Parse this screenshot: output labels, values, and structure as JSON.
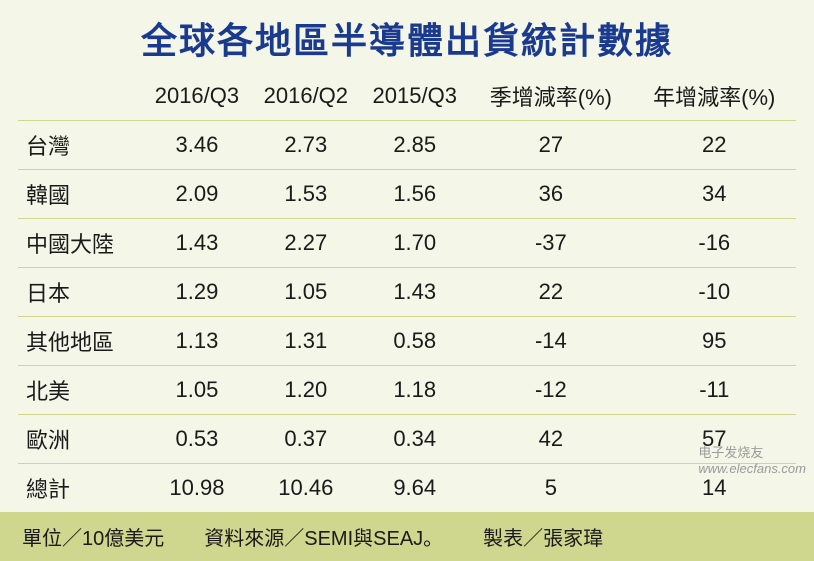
{
  "title": "全球各地區半導體出貨統計數據",
  "table": {
    "type": "table",
    "background_color": "#f4f6e8",
    "border_color": "#cfd68e",
    "title_color": "#1a3a8f",
    "text_color": "#1a1a1a",
    "font_size": 22,
    "title_font_size": 36,
    "columns": [
      "",
      "2016/Q3",
      "2016/Q2",
      "2015/Q3",
      "季增減率(%)",
      "年增減率(%)"
    ],
    "rows": [
      {
        "region": "台灣",
        "q3_2016": "3.46",
        "q2_2016": "2.73",
        "q3_2015": "2.85",
        "qoq": "27",
        "yoy": "22"
      },
      {
        "region": "韓國",
        "q3_2016": "2.09",
        "q2_2016": "1.53",
        "q3_2015": "1.56",
        "qoq": "36",
        "yoy": "34"
      },
      {
        "region": "中國大陸",
        "q3_2016": "1.43",
        "q2_2016": "2.27",
        "q3_2015": "1.70",
        "qoq": "-37",
        "yoy": "-16"
      },
      {
        "region": "日本",
        "q3_2016": "1.29",
        "q2_2016": "1.05",
        "q3_2015": "1.43",
        "qoq": "22",
        "yoy": "-10"
      },
      {
        "region": "其他地區",
        "q3_2016": "1.13",
        "q2_2016": "1.31",
        "q3_2015": "0.58",
        "qoq": "-14",
        "yoy": "95"
      },
      {
        "region": "北美",
        "q3_2016": "1.05",
        "q2_2016": "1.20",
        "q3_2015": "1.18",
        "qoq": "-12",
        "yoy": "-11"
      },
      {
        "region": "歐洲",
        "q3_2016": "0.53",
        "q2_2016": "0.37",
        "q3_2015": "0.34",
        "qoq": "42",
        "yoy": "57"
      },
      {
        "region": "總計",
        "q3_2016": "10.98",
        "q2_2016": "10.46",
        "q3_2015": "9.64",
        "qoq": "5",
        "yoy": "14"
      }
    ]
  },
  "footer": {
    "background_color": "#cfd68e",
    "unit": "單位／10億美元",
    "source": "資料來源／SEMI與SEAJ。",
    "author": "製表／張家瑋"
  },
  "watermark": {
    "cn": "电子发烧友",
    "url": "www.elecfans.com",
    "color": "#9a9a9a"
  }
}
